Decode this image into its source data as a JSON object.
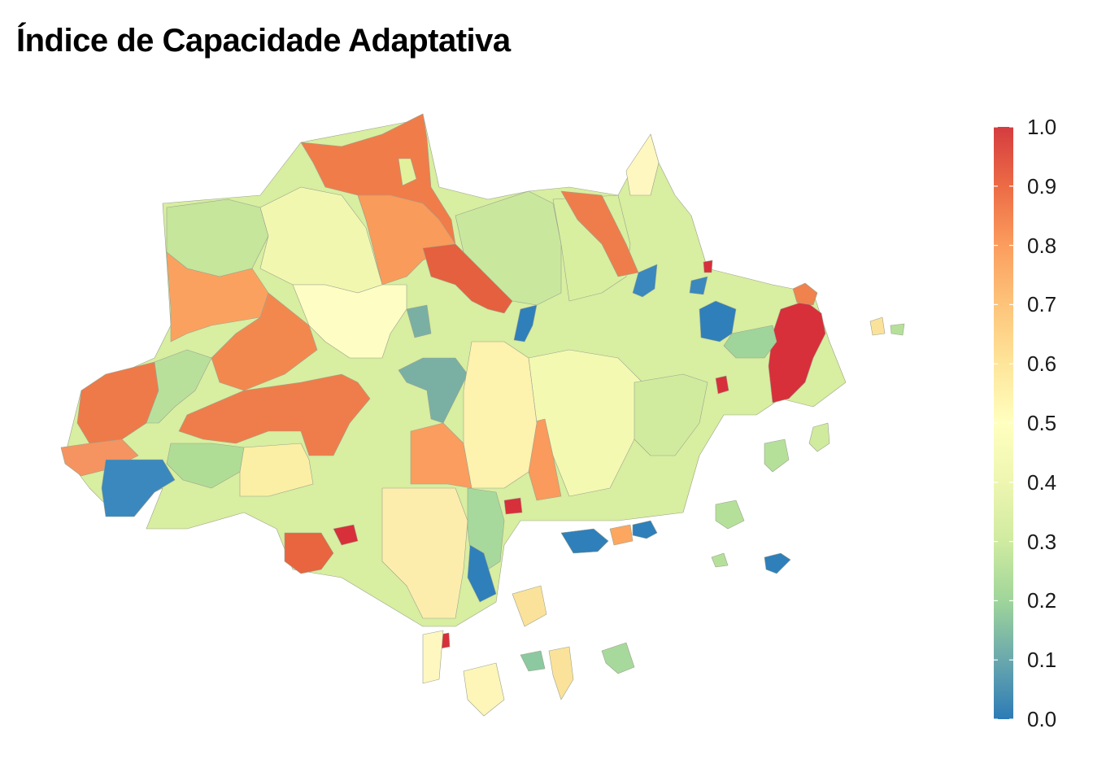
{
  "title": "Índice de Capacidade Adaptativa",
  "legend": {
    "ticks": [
      "1.0",
      "0.9",
      "0.8",
      "0.7",
      "0.6",
      "0.5",
      "0.4",
      "0.3",
      "0.2",
      "0.1",
      "0.0"
    ],
    "colors": [
      "#2c7bb6",
      "#abd9a4",
      "#ffffbf",
      "#fdae61",
      "#d7191c"
    ],
    "range": [
      0,
      1
    ]
  },
  "regions": [
    {
      "id": "north-west-orange",
      "value": 0.85
    },
    {
      "id": "west-large-orange",
      "value": 0.87
    },
    {
      "id": "central-west-red-orange",
      "value": 0.86
    },
    {
      "id": "south-west-blue",
      "value": 0.03
    },
    {
      "id": "north-central-blue",
      "value": 0.02
    },
    {
      "id": "east-red-cluster",
      "value": 0.97
    },
    {
      "id": "east-blue",
      "value": 0.01
    },
    {
      "id": "south-blue",
      "value": 0.02
    }
  ]
}
